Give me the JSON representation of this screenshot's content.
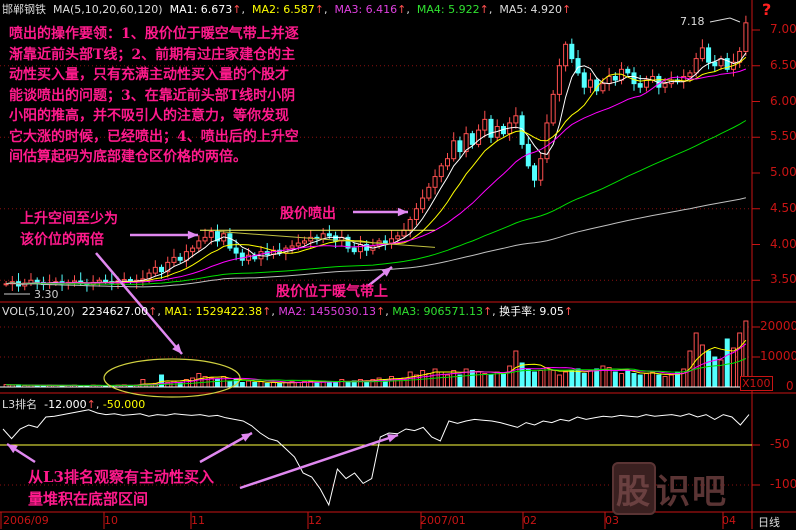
{
  "header": {
    "stock_name": "邯郸钢铁",
    "ma_label": "MA(5,10,20,60,120)",
    "ma1": "MA1: 6.673",
    "ma2": "MA2: 6.587",
    "ma3": "MA3: 6.416",
    "ma4": "MA4: 5.922",
    "ma5": "MA5: 4.920",
    "up_mark": "↑",
    "help_icon": "?"
  },
  "vol_header": {
    "label": "VOL(5,10,20)",
    "vol": "2234627.00",
    "ma1": "MA1: 1529422.38",
    "ma2": "MA2: 1455030.13",
    "ma3": "MA3: 906571.13",
    "turnover": "换手率: 9.05"
  },
  "l3_header": {
    "label": "L3排名",
    "v1": "-12.000",
    "v2": "-50.000"
  },
  "annotations": {
    "main_text": "喷出的操作要领：1、股价位于暖空气带上并逐\n渐靠近前头部T线；2、前期有过庄家建仓的主\n动性买入量，只有充满主动性买入量的个股才\n能谈喷出的问题；3、在靠近前头部T线时小阴\n小阳的推高，并不吸引人的注意力，等你发现\n它大涨的时候，已经喷出；4、喷出后的上升空\n间估算起码为底部建仓区价格的两倍。",
    "rise_space": "上升空间至少为\n该价位的两倍",
    "burst": "股价喷出",
    "warm_band": "股价位于暖气带上",
    "l3_note": "从L3排名观察有主动性买入\n量堆积在底部区间",
    "high_label": "7.18",
    "low_label": "3.30"
  },
  "watermark": "股识吧",
  "period": "日线",
  "vol_unit": "X100",
  "colors": {
    "up": "#ff5050",
    "down": "#54ffff",
    "ma5": "#ffffff",
    "ma10": "#ffff00",
    "ma20": "#ff00ff",
    "ma60": "#00e000",
    "ma120": "#c0c0c0",
    "axis": "#c81414",
    "note": "#ff1a8c",
    "arrow": "#e088f0"
  },
  "chart_data": [
    {
      "type": "candlestick",
      "title": "邯郸钢铁",
      "x_ticks": [
        "2006/09",
        "10",
        "11",
        "12",
        "2007/01",
        "02",
        "03",
        "04"
      ],
      "y_ticks": [
        "7.00",
        "6.50",
        "6.00",
        "5.50",
        "5.00",
        "4.50",
        "4.00",
        "3.50"
      ],
      "ylim": [
        3.2,
        7.3
      ],
      "high": 7.18,
      "low": 3.3,
      "close": [
        3.45,
        3.48,
        3.42,
        3.46,
        3.5,
        3.47,
        3.44,
        3.46,
        3.48,
        3.45,
        3.47,
        3.49,
        3.46,
        3.44,
        3.47,
        3.5,
        3.48,
        3.46,
        3.49,
        3.51,
        3.48,
        3.5,
        3.52,
        3.6,
        3.68,
        3.62,
        3.75,
        3.82,
        3.78,
        3.9,
        3.95,
        4.05,
        4.1,
        4.18,
        4.05,
        4.15,
        3.95,
        3.88,
        3.78,
        3.85,
        3.8,
        3.9,
        3.86,
        3.92,
        3.88,
        3.95,
        3.98,
        4.02,
        4.05,
        4.1,
        4.08,
        4.15,
        4.12,
        4.05,
        4.1,
        3.95,
        3.9,
        4.0,
        3.92,
        3.98,
        4.05,
        4.02,
        4.08,
        4.12,
        4.2,
        4.35,
        4.5,
        4.65,
        4.8,
        4.95,
        5.1,
        5.2,
        5.45,
        5.3,
        5.55,
        5.4,
        5.6,
        5.75,
        5.5,
        5.65,
        5.55,
        5.7,
        5.8,
        5.4,
        5.1,
        4.9,
        5.2,
        5.7,
        6.1,
        6.5,
        6.8,
        6.6,
        6.4,
        6.2,
        6.3,
        6.15,
        6.25,
        6.35,
        6.3,
        6.45,
        6.4,
        6.25,
        6.2,
        6.3,
        6.35,
        6.2,
        6.25,
        6.3,
        6.28,
        6.35,
        6.4,
        6.6,
        6.75,
        6.55,
        6.5,
        6.6,
        6.45,
        6.55,
        6.7,
        7.1
      ],
      "ma_periods": [
        5,
        10,
        20,
        60,
        120
      ]
    },
    {
      "type": "bar",
      "title": "VOL(5,10,20)",
      "y_ticks": [
        "20000",
        "10000",
        "0"
      ],
      "ylim": [
        0,
        23000
      ],
      "values": [
        800,
        600,
        700,
        500,
        600,
        400,
        500,
        600,
        500,
        400,
        500,
        600,
        400,
        500,
        600,
        500,
        400,
        500,
        600,
        700,
        500,
        600,
        2500,
        900,
        1200,
        4000,
        1500,
        2000,
        1500,
        2500,
        3000,
        4500,
        3500,
        3000,
        2500,
        3500,
        2000,
        2500,
        1500,
        2000,
        1500,
        1800,
        1200,
        1500,
        1200,
        1500,
        1800,
        1500,
        1800,
        2000,
        1500,
        2000,
        1800,
        1500,
        2500,
        1500,
        2000,
        2500,
        2000,
        2500,
        3000,
        2500,
        3500,
        2500,
        3000,
        5000,
        4000,
        5500,
        4500,
        6000,
        5000,
        4000,
        5500,
        4000,
        6000,
        5500,
        5000,
        4500,
        4000,
        5000,
        4500,
        7000,
        12000,
        8000,
        6000,
        5000,
        5500,
        6500,
        5500,
        4000,
        5000,
        5500,
        6000,
        4500,
        5500,
        6000,
        7000,
        6500,
        5000,
        4500,
        5500,
        4500,
        4000,
        4500,
        5000,
        4000,
        3500,
        4000,
        5000,
        6000,
        12000,
        18000,
        14000,
        12000,
        10000,
        9000,
        16000,
        13000,
        18000,
        22000
      ]
    },
    {
      "type": "line",
      "title": "L3排名",
      "y_ticks": [
        "-50",
        "-100"
      ],
      "ylim": [
        -135,
        0
      ],
      "reference": -50,
      "values": [
        -30,
        -42,
        -30,
        -25,
        -28,
        -15,
        -14,
        -12,
        -10,
        -8,
        -6,
        -10,
        -12,
        -11,
        -13,
        -12,
        -11,
        -14,
        -12,
        -13,
        -11,
        -12,
        -13,
        -12,
        -14,
        -13,
        -16,
        -18,
        -20,
        -26,
        -35,
        -42,
        -45,
        -55,
        -65,
        -85,
        -90,
        -105,
        -125,
        -80,
        -92,
        -85,
        -98,
        -92,
        -40,
        -35,
        -36,
        -30,
        -32,
        -28,
        -40,
        -45,
        -20,
        -23,
        -20,
        -18,
        -19,
        -20,
        -22,
        -25,
        -28,
        -22,
        -25,
        -20,
        -22,
        -18,
        -20,
        -15,
        -18,
        -16,
        -14,
        -15,
        -13,
        -14,
        -15,
        -12,
        -14,
        -13,
        -12,
        -14,
        -11,
        -15,
        -12,
        -18,
        -12,
        -15,
        -25,
        -12
      ]
    }
  ]
}
